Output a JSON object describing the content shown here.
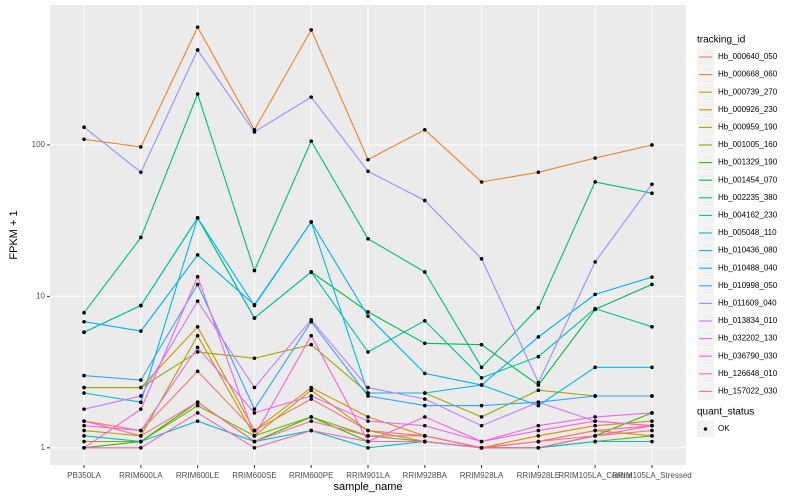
{
  "chart_data": {
    "type": "line",
    "x_label": "sample_name",
    "y_label": "FPKM + 1",
    "log_y": true,
    "grid": true,
    "legend_title": "tracking_id",
    "legend_position": "right",
    "point_legend_title": "quant_status",
    "point_legend_entries": [
      "OK"
    ],
    "point_color": "#000000",
    "categories": [
      "PB350LA",
      "RRIM600LA",
      "RRIM600LE",
      "RRIM600SE",
      "RRIM600PE",
      "RRIM901LA",
      "RRIM928BA",
      "RRIM928LA",
      "RRIM928LE",
      "RRIM105LA_Control",
      "RRIM105LA_Stressed"
    ],
    "ylim": [
      0.77,
      840
    ],
    "yticks": [
      1,
      10,
      100
    ],
    "series": [
      {
        "name": "Hb_000640_050",
        "color": "#F8766D",
        "values": [
          1.5,
          1.3,
          3.2,
          1.3,
          2.1,
          1.3,
          1.2,
          1.0,
          1.1,
          1.2,
          1.3
        ]
      },
      {
        "name": "Hb_000668_060",
        "color": "#EA8331",
        "values": [
          109,
          97,
          600,
          126,
          575,
          80,
          126,
          57,
          66,
          82,
          100
        ]
      },
      {
        "name": "Hb_000739_270",
        "color": "#D89000",
        "values": [
          2.5,
          2.5,
          6.3,
          1.3,
          2.5,
          1.6,
          1.2,
          1.0,
          1.2,
          1.4,
          1.5
        ]
      },
      {
        "name": "Hb_000926_230",
        "color": "#C09B00",
        "values": [
          1.3,
          1.2,
          5.5,
          1.2,
          2.4,
          1.3,
          1.1,
          1.0,
          1.1,
          1.3,
          1.2
        ]
      },
      {
        "name": "Hb_000959_190",
        "color": "#A3A500",
        "values": [
          2.5,
          2.5,
          4.3,
          3.9,
          4.8,
          2.3,
          2.3,
          1.6,
          2.4,
          2.2,
          2.2
        ]
      },
      {
        "name": "Hb_001005_160",
        "color": "#7CAE00",
        "values": [
          1.1,
          1.1,
          1.9,
          1.2,
          1.6,
          1.2,
          1.1,
          1.0,
          1.0,
          1.1,
          1.2
        ]
      },
      {
        "name": "Hb_001329_190",
        "color": "#39B600",
        "values": [
          1.0,
          1.1,
          2.0,
          1.1,
          1.6,
          1.1,
          1.1,
          1.0,
          1.0,
          1.2,
          1.7
        ]
      },
      {
        "name": "Hb_001454_070",
        "color": "#00BB4E",
        "values": [
          5.8,
          8.7,
          33,
          7.2,
          14.5,
          7.9,
          4.9,
          4.8,
          2.6,
          8.2,
          12
        ]
      },
      {
        "name": "Hb_002235_380",
        "color": "#00BF7D",
        "values": [
          7.8,
          24.5,
          217,
          14.8,
          106,
          24,
          14.5,
          3.4,
          8.4,
          57,
          48
        ]
      },
      {
        "name": "Hb_004162_230",
        "color": "#00C1A3",
        "values": [
          5.8,
          8.7,
          33,
          7.2,
          14.5,
          4.3,
          6.9,
          2.9,
          4.0,
          8.3,
          6.3
        ]
      },
      {
        "name": "Hb_005048_110",
        "color": "#00BFC4",
        "values": [
          1.2,
          1.1,
          1.5,
          1.1,
          1.3,
          1.0,
          1.1,
          1.0,
          1.0,
          1.1,
          1.1
        ]
      },
      {
        "name": "Hb_010436_080",
        "color": "#00BAE0",
        "values": [
          2.3,
          2.0,
          33,
          8.7,
          31,
          2.3,
          2.3,
          2.6,
          1.9,
          3.4,
          3.4
        ]
      },
      {
        "name": "Hb_010488_040",
        "color": "#00B0F6",
        "values": [
          6.8,
          5.9,
          18.8,
          8.8,
          31,
          7.4,
          3.1,
          2.6,
          5.4,
          10.3,
          13.4
        ]
      },
      {
        "name": "Hb_010998_050",
        "color": "#35A2FF",
        "values": [
          3.0,
          2.8,
          12,
          1.8,
          6.8,
          2.2,
          1.9,
          1.9,
          2.0,
          2.2,
          2.2
        ]
      },
      {
        "name": "Hb_011609_040",
        "color": "#9590FF",
        "values": [
          131,
          66,
          424,
          122,
          207,
          67,
          43,
          17.7,
          2.7,
          16.9,
          55
        ]
      },
      {
        "name": "Hb_013834_010",
        "color": "#C77CFF",
        "values": [
          1.8,
          2.2,
          9.3,
          2.5,
          7.0,
          2.5,
          2.1,
          1.4,
          2.0,
          1.5,
          1.4
        ]
      },
      {
        "name": "Hb_032202_130",
        "color": "#E76BF3",
        "values": [
          1.4,
          1.3,
          4.6,
          1.7,
          2.2,
          1.5,
          1.4,
          1.1,
          1.4,
          1.6,
          1.7
        ]
      },
      {
        "name": "Hb_036790_030",
        "color": "#FA62DB",
        "values": [
          1.0,
          1.8,
          13.5,
          1.2,
          5.5,
          1.1,
          1.6,
          1.1,
          1.3,
          1.5,
          1.4
        ]
      },
      {
        "name": "Hb_126648_010",
        "color": "#FF62BC",
        "values": [
          1.0,
          1.0,
          1.7,
          1.0,
          1.3,
          1.1,
          1.1,
          1.0,
          1.0,
          1.2,
          1.4
        ]
      },
      {
        "name": "Hb_157022_030",
        "color": "#FF6C91",
        "values": [
          1.5,
          1.2,
          2.0,
          1.1,
          1.5,
          1.2,
          1.2,
          1.0,
          1.1,
          1.3,
          1.4
        ]
      }
    ]
  }
}
